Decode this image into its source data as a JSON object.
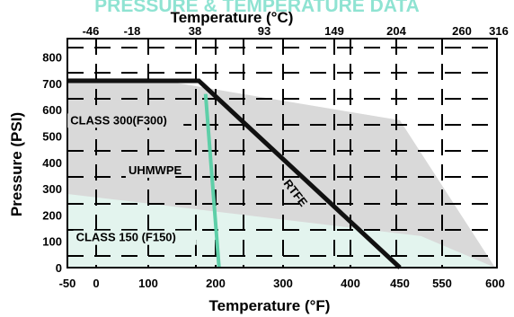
{
  "heading_partial": "PRESSURE & TEMPERATURE DATA",
  "colors": {
    "heading": "#8fe3d2",
    "class300_fill": "#d9d9d9",
    "class150_fill": "#e3f4ee",
    "rtfe_line": "#111111",
    "uhmwpe_line": "#5ecfa8",
    "grid": "#000000"
  },
  "chart_data": {
    "type": "line",
    "title": "",
    "xlabel": "Temperature (°F)",
    "x2label": "Temperature (°C)",
    "ylabel": "Pressure (PSI)",
    "x_ticks": [
      "-50",
      "0",
      "100",
      "200",
      "300",
      "400",
      "450",
      "550",
      "600"
    ],
    "x2_ticks": [
      "-46",
      "-18",
      "38",
      "93",
      "149",
      "204",
      "260",
      "316"
    ],
    "y_ticks": [
      "0",
      "100",
      "200",
      "300",
      "400",
      "500",
      "600",
      "700",
      "800"
    ],
    "ylim": [
      0,
      850
    ],
    "grid": true,
    "dashed_grid": true,
    "series": [
      {
        "name": "CLASS 300(F300)",
        "kind": "area",
        "points": [
          [
            -50,
            720
          ],
          [
            100,
            720
          ],
          [
            450,
            560
          ],
          [
            600,
            0
          ],
          [
            -50,
            0
          ]
        ]
      },
      {
        "name": "CLASS 150 (F150)",
        "kind": "area",
        "points": [
          [
            -50,
            280
          ],
          [
            500,
            120
          ],
          [
            600,
            0
          ],
          [
            -50,
            0
          ]
        ]
      },
      {
        "name": "RTFE",
        "kind": "line",
        "points": [
          [
            -50,
            710
          ],
          [
            175,
            710
          ],
          [
            450,
            0
          ]
        ]
      },
      {
        "name": "UHMWPE",
        "kind": "line",
        "points": [
          [
            185,
            660
          ],
          [
            205,
            0
          ]
        ]
      }
    ],
    "annotations": [
      {
        "text": "CLASS 300(F300)",
        "x": -45,
        "y": 545
      },
      {
        "text": "UHMWPE",
        "x": 62,
        "y": 355
      },
      {
        "text": "RTFE",
        "x": 300,
        "y": 320
      },
      {
        "text": "CLASS 150 (F150)",
        "x": -35,
        "y": 100
      }
    ]
  }
}
